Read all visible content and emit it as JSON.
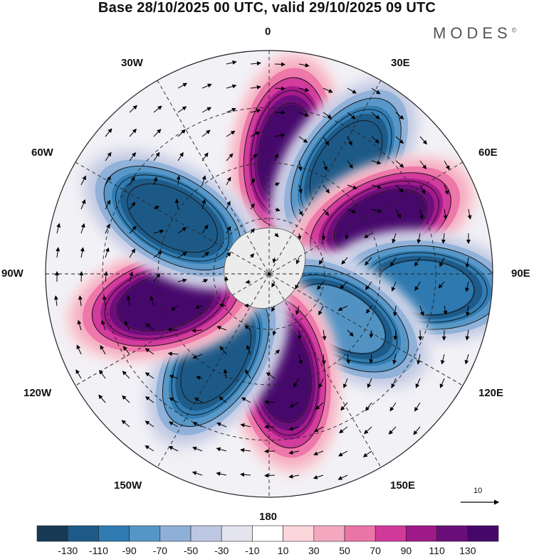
{
  "title": "Base 28/10/2025 00 UTC, valid 29/10/2025 09 UTC",
  "brand": "MODES",
  "brand_mark": "©",
  "longitude_labels": {
    "deg0": "0",
    "deg30e": "30E",
    "deg60e": "60E",
    "deg90e": "90E",
    "deg120e": "120E",
    "deg150e": "150E",
    "deg180": "180",
    "deg150w": "150W",
    "deg120w": "120W",
    "deg90w": "90W",
    "deg60w": "60W",
    "deg30w": "30W"
  },
  "vector_scale_label": "10",
  "colorbar": {
    "labels": [
      "-130",
      "-110",
      "-90",
      "-70",
      "-50",
      "-30",
      "-10",
      "10",
      "30",
      "50",
      "70",
      "90",
      "110",
      "130"
    ],
    "colors": [
      "#163a55",
      "#1d5a87",
      "#2f7bb2",
      "#5596c6",
      "#8eb0d8",
      "#bec7e2",
      "#e4e4ef",
      "#ffffff",
      "#fbd7dc",
      "#f4a8bf",
      "#ec75a8",
      "#d1399a",
      "#a0198b",
      "#6a0f7a",
      "#45086a"
    ]
  },
  "anomaly_centres": [
    {
      "kind": "positive",
      "bearing_deg": 8,
      "radius_frac": 0.55,
      "magnitude": 130
    },
    {
      "kind": "negative",
      "bearing_deg": 35,
      "radius_frac": 0.6,
      "magnitude": -130
    },
    {
      "kind": "positive",
      "bearing_deg": 65,
      "radius_frac": 0.55,
      "magnitude": 130
    },
    {
      "kind": "negative",
      "bearing_deg": 95,
      "radius_frac": 0.7,
      "magnitude": -110
    },
    {
      "kind": "negative",
      "bearing_deg": 122,
      "radius_frac": 0.38,
      "magnitude": -90
    },
    {
      "kind": "positive",
      "bearing_deg": 172,
      "radius_frac": 0.45,
      "magnitude": 130
    },
    {
      "kind": "negative",
      "bearing_deg": 212,
      "radius_frac": 0.45,
      "magnitude": -130
    },
    {
      "kind": "positive",
      "bearing_deg": 255,
      "radius_frac": 0.48,
      "magnitude": 130
    },
    {
      "kind": "negative",
      "bearing_deg": 300,
      "radius_frac": 0.5,
      "magnitude": -130
    }
  ]
}
